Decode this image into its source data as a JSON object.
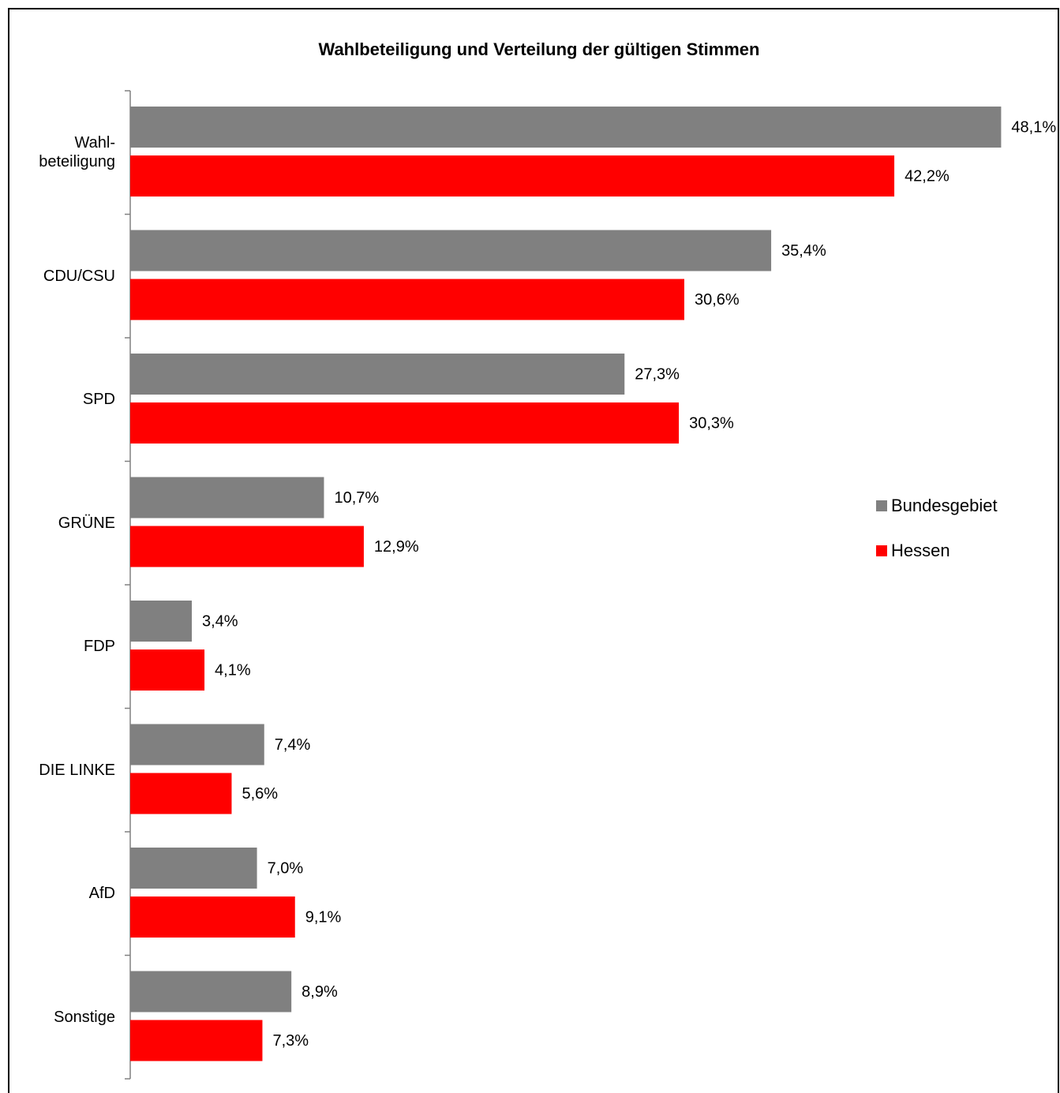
{
  "chart_data": {
    "type": "bar",
    "orientation": "horizontal",
    "title": "Wahlbeteiligung und Verteilung der gültigen Stimmen",
    "categories": [
      "Wahl-\nbeteiligung",
      "CDU/CSU",
      "SPD",
      "GRÜNE",
      "FDP",
      "DIE LINKE",
      "AfD",
      "Sonstige"
    ],
    "series": [
      {
        "name": "Bundesgebiet",
        "color": "#808080",
        "values": [
          48.1,
          35.4,
          27.3,
          10.7,
          3.4,
          7.4,
          7.0,
          8.9
        ],
        "value_labels": [
          "48,1%",
          "35,4%",
          "27,3%",
          "10,7%",
          "3,4%",
          "7,4%",
          "7,0%",
          "8,9%"
        ]
      },
      {
        "name": "Hessen",
        "color": "#ff0000",
        "values": [
          42.2,
          30.6,
          30.3,
          12.9,
          4.1,
          5.6,
          9.1,
          7.3
        ],
        "value_labels": [
          "42,2%",
          "30,6%",
          "30,3%",
          "12,9%",
          "4,1%",
          "5,6%",
          "9,1%",
          "7,3%"
        ]
      }
    ],
    "xlim": [
      0,
      50
    ],
    "legend": "right"
  }
}
